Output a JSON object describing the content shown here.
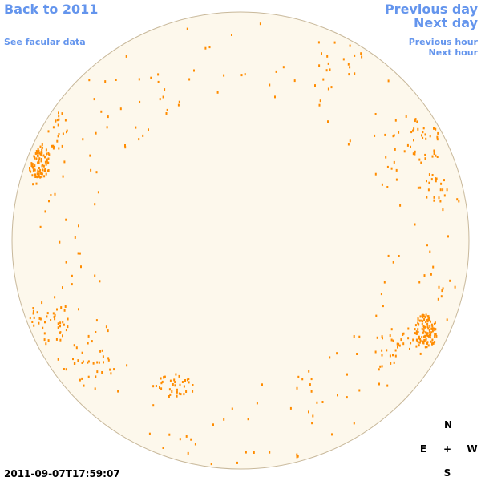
{
  "nav": {
    "back_year": "Back to 2011",
    "facular_link": "See facular data",
    "previous_day": "Previous day",
    "next_day": "Next day",
    "previous_hour": "Previous hour",
    "next_hour": "Next hour"
  },
  "timestamp": "2011-09-07T17:59:07",
  "compass": {
    "north": "N",
    "east": "E",
    "center": "+",
    "west": "W",
    "south": "S"
  }
}
